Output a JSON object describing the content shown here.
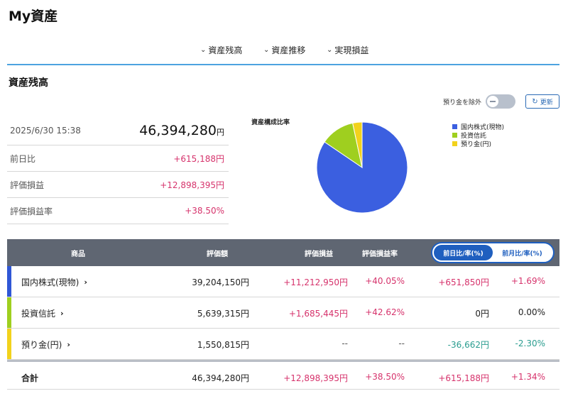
{
  "page": {
    "title": "My資産"
  },
  "anchor_nav": [
    {
      "label": "資産残高"
    },
    {
      "label": "資産推移"
    },
    {
      "label": "実現損益"
    }
  ],
  "section": {
    "title": "資産残高"
  },
  "controls": {
    "exclude_deposit_label": "預り金を除外",
    "refresh_label": "更新"
  },
  "summary": {
    "datetime": "2025/6/30 15:38",
    "total_value": "46,394,280",
    "total_unit": "円",
    "rows": [
      {
        "label": "前日比",
        "value": "+615,188円"
      },
      {
        "label": "評価損益",
        "value": "+12,898,395円"
      },
      {
        "label": "評価損益率",
        "value": "+38.50%"
      }
    ]
  },
  "chart_data": {
    "type": "pie",
    "title": "資産構成比率",
    "categories": [
      "国内株式(現物)",
      "投資信託",
      "預り金(円)"
    ],
    "values": [
      39204150,
      5639315,
      1550815
    ],
    "colors": [
      "#3b5fe0",
      "#9fcf1f",
      "#f2d21c"
    ],
    "legend_position": "right"
  },
  "table": {
    "headers": {
      "product": "商品",
      "value": "評価額",
      "gain": "評価損益",
      "gain_rate": "評価損益率"
    },
    "segment": {
      "active": "前日比/率(%)",
      "inactive": "前月比/率(%)"
    },
    "rows": [
      {
        "name": "国内株式(現物)",
        "color": "#2f57d6",
        "value": "39,204,150円",
        "gain": "+11,212,950円",
        "gain_rate": "+40.05%",
        "change": "+651,850円",
        "change_rate": "+1.69%"
      },
      {
        "name": "投資信託",
        "color": "#9fcf1f",
        "value": "5,639,315円",
        "gain": "+1,685,445円",
        "gain_rate": "+42.62%",
        "change": "0円",
        "change_rate": "0.00%"
      },
      {
        "name": "預り金(円)",
        "color": "#f2d21c",
        "value": "1,550,815円",
        "gain": "--",
        "gain_rate": "--",
        "change": "-36,662円",
        "change_rate": "-2.30%"
      }
    ],
    "total": {
      "name": "合計",
      "value": "46,394,280円",
      "gain": "+12,898,395円",
      "gain_rate": "+38.50%",
      "change": "+615,188円",
      "change_rate": "+1.34%"
    }
  }
}
